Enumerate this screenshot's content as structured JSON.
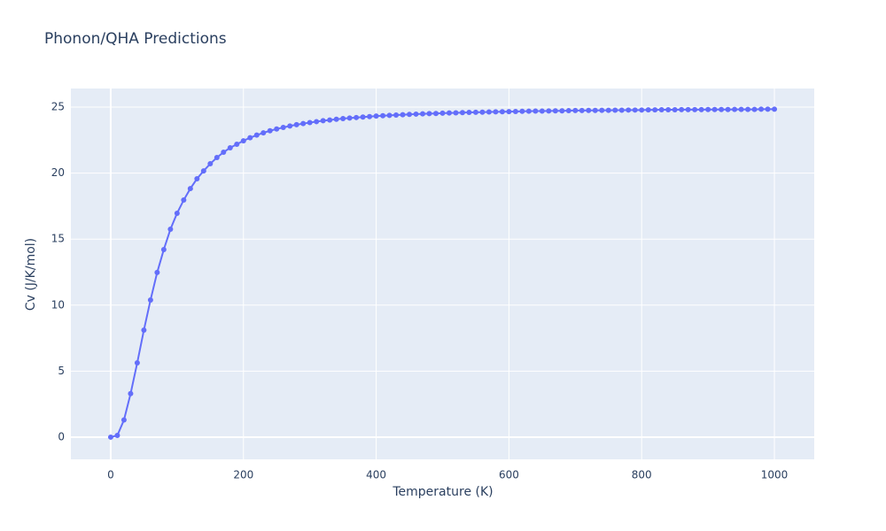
{
  "chart_data": {
    "type": "line",
    "title": "Phonon/QHA Predictions",
    "x_label": "Temperature (K)",
    "y_label": "Cv (J/K/mol)",
    "x": [
      0,
      10,
      20,
      30,
      40,
      50,
      60,
      70,
      80,
      90,
      100,
      110,
      120,
      130,
      140,
      150,
      160,
      170,
      180,
      190,
      200,
      210,
      220,
      230,
      240,
      250,
      260,
      270,
      280,
      290,
      300,
      310,
      320,
      330,
      340,
      350,
      360,
      370,
      380,
      390,
      400,
      410,
      420,
      430,
      440,
      450,
      460,
      470,
      480,
      490,
      500,
      510,
      520,
      530,
      540,
      550,
      560,
      570,
      580,
      590,
      600,
      610,
      620,
      630,
      640,
      650,
      660,
      670,
      680,
      690,
      700,
      710,
      720,
      730,
      740,
      750,
      760,
      770,
      780,
      790,
      800,
      810,
      820,
      830,
      840,
      850,
      860,
      870,
      880,
      890,
      900,
      910,
      920,
      930,
      940,
      950,
      960,
      970,
      980,
      990,
      1000
    ],
    "series": [
      {
        "name": "Cv",
        "color": "#636efa",
        "values": [
          0,
          0.13,
          1.3,
          3.3,
          5.63,
          8.11,
          10.39,
          12.47,
          14.21,
          15.75,
          16.96,
          17.96,
          18.83,
          19.57,
          20.17,
          20.71,
          21.18,
          21.58,
          21.92,
          22.19,
          22.45,
          22.68,
          22.88,
          23.05,
          23.21,
          23.34,
          23.46,
          23.57,
          23.67,
          23.75,
          23.83,
          23.9,
          23.97,
          24.02,
          24.08,
          24.13,
          24.17,
          24.21,
          24.25,
          24.28,
          24.32,
          24.35,
          24.37,
          24.4,
          24.42,
          24.45,
          24.47,
          24.49,
          24.51,
          24.52,
          24.54,
          24.56,
          24.57,
          24.58,
          24.6,
          24.61,
          24.62,
          24.63,
          24.64,
          24.65,
          24.66,
          24.67,
          24.68,
          24.69,
          24.7,
          24.7,
          24.71,
          24.72,
          24.72,
          24.73,
          24.74,
          24.74,
          24.75,
          24.75,
          24.76,
          24.76,
          24.77,
          24.77,
          24.78,
          24.78,
          24.78,
          24.79,
          24.79,
          24.8,
          24.8,
          24.8,
          24.81,
          24.81,
          24.81,
          24.81,
          24.82,
          24.82,
          24.82,
          24.82,
          24.83,
          24.83,
          24.83,
          24.83,
          24.84,
          24.84,
          24.84
        ]
      }
    ],
    "xlim": [
      -60,
      1060
    ],
    "ylim": [
      -1.68,
      26.41
    ],
    "xticks": [
      0,
      200,
      400,
      600,
      800,
      1000
    ],
    "yticks": [
      0,
      5,
      10,
      15,
      20,
      25
    ],
    "grid": true,
    "markers": true,
    "background": "#e5ecf6"
  }
}
